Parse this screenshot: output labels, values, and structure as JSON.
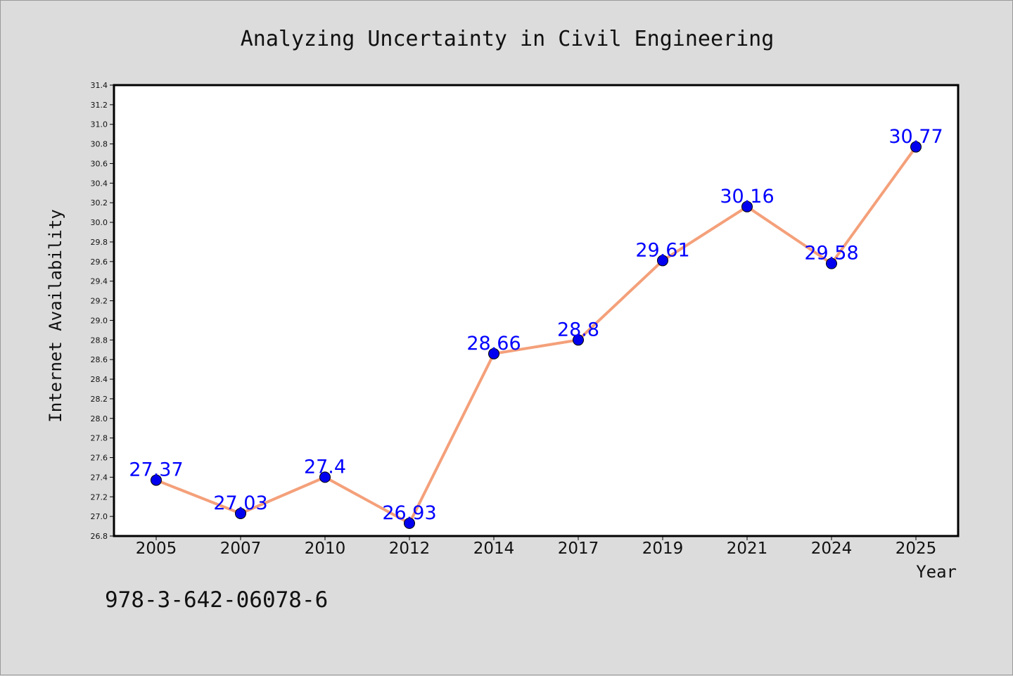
{
  "chart_data": {
    "type": "line",
    "title": "Analyzing Uncertainty in Civil Engineering",
    "xlabel": "Year",
    "ylabel": "Internet Availability",
    "categories": [
      "2005",
      "2007",
      "2010",
      "2012",
      "2014",
      "2017",
      "2019",
      "2021",
      "2024",
      "2025"
    ],
    "values": [
      27.37,
      27.03,
      27.4,
      26.93,
      28.66,
      28.8,
      29.61,
      30.16,
      29.58,
      30.77
    ],
    "data_labels": [
      "27.37",
      "27.03",
      "27.4",
      "26.93",
      "28.66",
      "28.8",
      "29.61",
      "30.16",
      "29.58",
      "30.77"
    ],
    "ylim": [
      26.8,
      31.4
    ],
    "yticks": [
      "26.8",
      "27.0",
      "27.2",
      "27.4",
      "27.6",
      "27.8",
      "28.0",
      "28.2",
      "28.4",
      "28.6",
      "28.8",
      "29.0",
      "29.2",
      "29.4",
      "29.6",
      "29.8",
      "30.0",
      "30.2",
      "30.4",
      "30.6",
      "30.8",
      "31.0",
      "31.2",
      "31.4"
    ],
    "grid": false,
    "legend": "none",
    "colors": {
      "line": "#f4a07a",
      "marker": "#0000ee",
      "data_label": "#0000ff",
      "plot_background": "#ffffff",
      "figure_background": "#dcdcdc"
    }
  },
  "footer": {
    "code": "978-3-642-06078-6"
  }
}
